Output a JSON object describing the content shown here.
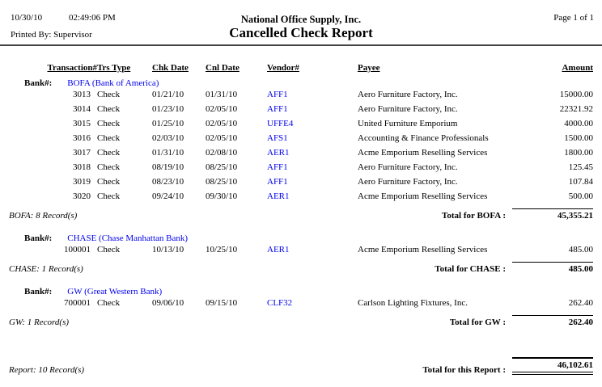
{
  "header": {
    "date": "10/30/10",
    "time": "02:49:06 PM",
    "company": "National Office Supply, Inc.",
    "title": "Cancelled Check Report",
    "printed_by": "Printed By: Supervisor",
    "page": "Page 1 of 1"
  },
  "columns": {
    "transaction": "Transaction#",
    "trs_type": "Trs Type",
    "chk_date": "Chk Date",
    "cnl_date": "Cnl Date",
    "vendor": "Vendor#",
    "payee": "Payee",
    "amount": "Amount"
  },
  "bank_label": "Bank#:",
  "colors": {
    "link_blue": "#0000EE",
    "text": "#000000",
    "rule": "#444444"
  },
  "sections": [
    {
      "bank": "BOFA (Bank of America)",
      "rows": [
        {
          "transaction": "3013",
          "trs_type": "Check",
          "chk_date": "01/21/10",
          "cnl_date": "01/31/10",
          "vendor": "AFF1",
          "payee": "Aero Furniture Factory, Inc.",
          "amount": "15000.00"
        },
        {
          "transaction": "3014",
          "trs_type": "Check",
          "chk_date": "01/23/10",
          "cnl_date": "02/05/10",
          "vendor": "AFF1",
          "payee": "Aero Furniture Factory, Inc.",
          "amount": "22321.92"
        },
        {
          "transaction": "3015",
          "trs_type": "Check",
          "chk_date": "01/25/10",
          "cnl_date": "02/05/10",
          "vendor": "UFFE4",
          "payee": "United Furniture Emporium",
          "amount": "4000.00"
        },
        {
          "transaction": "3016",
          "trs_type": "Check",
          "chk_date": "02/03/10",
          "cnl_date": "02/05/10",
          "vendor": "AFS1",
          "payee": "Accounting & Finance Professionals",
          "amount": "1500.00"
        },
        {
          "transaction": "3017",
          "trs_type": "Check",
          "chk_date": "01/31/10",
          "cnl_date": "02/08/10",
          "vendor": "AER1",
          "payee": "Acme Emporium Reselling Services",
          "amount": "1800.00"
        },
        {
          "transaction": "3018",
          "trs_type": "Check",
          "chk_date": "08/19/10",
          "cnl_date": "08/25/10",
          "vendor": "AFF1",
          "payee": "Aero Furniture Factory, Inc.",
          "amount": "125.45"
        },
        {
          "transaction": "3019",
          "trs_type": "Check",
          "chk_date": "08/23/10",
          "cnl_date": "08/25/10",
          "vendor": "AFF1",
          "payee": "Aero Furniture Factory, Inc.",
          "amount": "107.84"
        },
        {
          "transaction": "3020",
          "trs_type": "Check",
          "chk_date": "09/24/10",
          "cnl_date": "09/30/10",
          "vendor": "AER1",
          "payee": "Acme Emporium Reselling Services",
          "amount": "500.00"
        }
      ],
      "records": "BOFA: 8 Record(s)",
      "total_label": "Total for BOFA :",
      "total": "45,355.21"
    },
    {
      "bank": "CHASE (Chase Manhattan Bank)",
      "rows": [
        {
          "transaction": "100001",
          "trs_type": "Check",
          "chk_date": "10/13/10",
          "cnl_date": "10/25/10",
          "vendor": "AER1",
          "payee": "Acme Emporium Reselling Services",
          "amount": "485.00"
        }
      ],
      "records": "CHASE: 1 Record(s)",
      "total_label": "Total for CHASE :",
      "total": "485.00"
    },
    {
      "bank": "GW (Great Western Bank)",
      "rows": [
        {
          "transaction": "700001",
          "trs_type": "Check",
          "chk_date": "09/06/10",
          "cnl_date": "09/15/10",
          "vendor": "CLF32",
          "payee": "Carlson Lighting Fixtures, Inc.",
          "amount": "262.40"
        }
      ],
      "records": "GW: 1 Record(s)",
      "total_label": "Total for GW :",
      "total": "262.40"
    }
  ],
  "report_footer": {
    "records": "Report: 10 Record(s)",
    "total_label": "Total for this Report :",
    "total": "46,102.61"
  }
}
